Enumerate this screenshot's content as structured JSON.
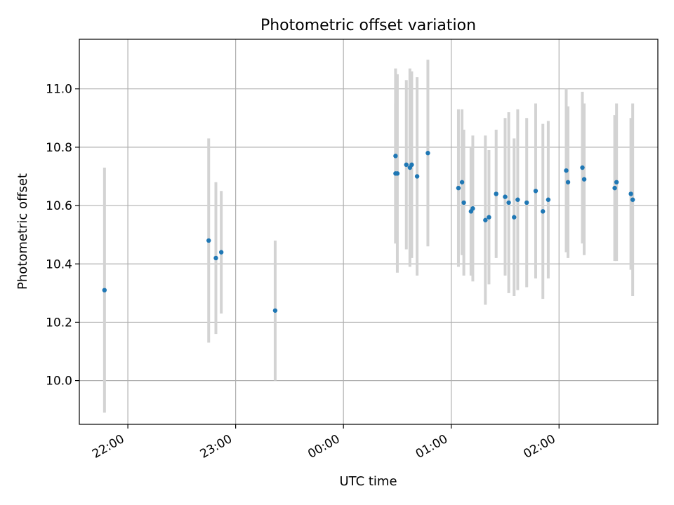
{
  "chart_data": {
    "type": "scatter",
    "title": "Photometric offset variation",
    "xlabel": "UTC time",
    "ylabel": "Photometric offset",
    "xaxis_type": "time",
    "xlim": [
      "21:33",
      "02:55"
    ],
    "ylim": [
      9.85,
      11.17
    ],
    "grid": true,
    "xticks": [
      "22:00",
      "23:00",
      "00:00",
      "01:00",
      "02:00"
    ],
    "yticks": [
      "10.0",
      "10.2",
      "10.4",
      "10.6",
      "10.8",
      "11.0"
    ],
    "marker_color": "#1f77b4",
    "errorbar_color": "#d3d3d3",
    "points": [
      {
        "x": "21:47",
        "y": 10.31,
        "err": 0.42
      },
      {
        "x": "22:45",
        "y": 10.48,
        "err": 0.35
      },
      {
        "x": "22:49",
        "y": 10.42,
        "err": 0.26
      },
      {
        "x": "22:52",
        "y": 10.44,
        "err": 0.21
      },
      {
        "x": "23:22",
        "y": 10.24,
        "err": 0.24
      },
      {
        "x": "00:29",
        "y": 10.77,
        "err": 0.3
      },
      {
        "x": "00:29",
        "y": 10.71,
        "err": 0.24
      },
      {
        "x": "00:30",
        "y": 10.71,
        "err": 0.34
      },
      {
        "x": "00:35",
        "y": 10.74,
        "err": 0.29
      },
      {
        "x": "00:37",
        "y": 10.73,
        "err": 0.34
      },
      {
        "x": "00:38",
        "y": 10.74,
        "err": 0.32
      },
      {
        "x": "00:41",
        "y": 10.7,
        "err": 0.34
      },
      {
        "x": "00:47",
        "y": 10.78,
        "err": 0.32
      },
      {
        "x": "01:04",
        "y": 10.66,
        "err": 0.27
      },
      {
        "x": "01:06",
        "y": 10.68,
        "err": 0.25
      },
      {
        "x": "01:07",
        "y": 10.61,
        "err": 0.25
      },
      {
        "x": "01:11",
        "y": 10.58,
        "err": 0.22
      },
      {
        "x": "01:12",
        "y": 10.59,
        "err": 0.25
      },
      {
        "x": "01:19",
        "y": 10.55,
        "err": 0.29
      },
      {
        "x": "01:21",
        "y": 10.56,
        "err": 0.23
      },
      {
        "x": "01:25",
        "y": 10.64,
        "err": 0.22
      },
      {
        "x": "01:30",
        "y": 10.63,
        "err": 0.27
      },
      {
        "x": "01:32",
        "y": 10.61,
        "err": 0.31
      },
      {
        "x": "01:35",
        "y": 10.56,
        "err": 0.27
      },
      {
        "x": "01:37",
        "y": 10.62,
        "err": 0.31
      },
      {
        "x": "01:42",
        "y": 10.61,
        "err": 0.29
      },
      {
        "x": "01:47",
        "y": 10.65,
        "err": 0.3
      },
      {
        "x": "01:51",
        "y": 10.58,
        "err": 0.3
      },
      {
        "x": "01:54",
        "y": 10.62,
        "err": 0.27
      },
      {
        "x": "02:04",
        "y": 10.72,
        "err": 0.28
      },
      {
        "x": "02:05",
        "y": 10.68,
        "err": 0.26
      },
      {
        "x": "02:13",
        "y": 10.73,
        "err": 0.26
      },
      {
        "x": "02:14",
        "y": 10.69,
        "err": 0.26
      },
      {
        "x": "02:31",
        "y": 10.66,
        "err": 0.25
      },
      {
        "x": "02:32",
        "y": 10.68,
        "err": 0.27
      },
      {
        "x": "02:40",
        "y": 10.64,
        "err": 0.26
      },
      {
        "x": "02:41",
        "y": 10.62,
        "err": 0.33
      }
    ]
  }
}
